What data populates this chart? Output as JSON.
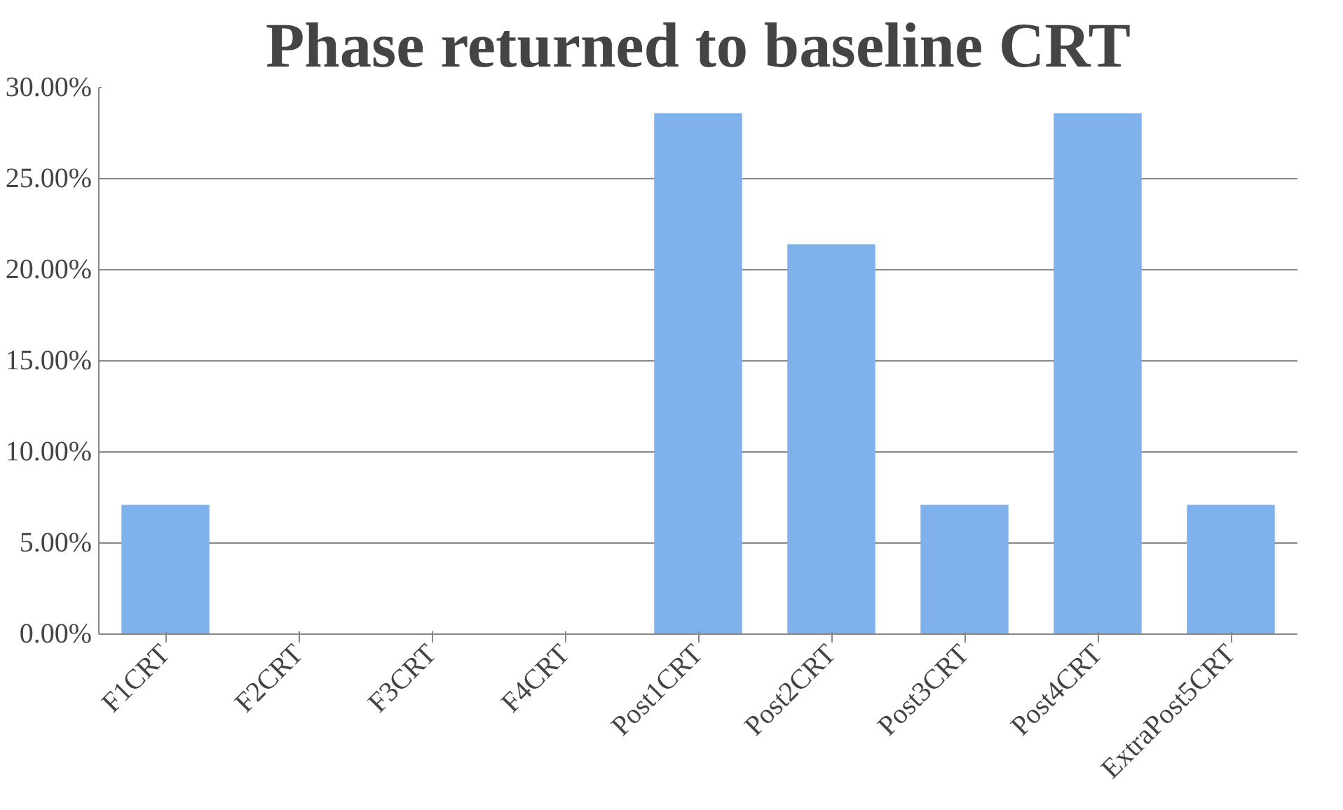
{
  "chart_data": {
    "type": "bar",
    "title": "Phase returned to baseline CRT",
    "categories": [
      "F1CRT",
      "F2CRT",
      "F3CRT",
      "F4CRT",
      "Post1CRT",
      "Post2CRT",
      "Post3CRT",
      "Post4CRT",
      "ExtraPost5CRT"
    ],
    "values": [
      7.1,
      0,
      0,
      0,
      28.6,
      21.4,
      7.1,
      28.6,
      7.1
    ],
    "color": "#7fb1ec",
    "ylim": [
      0,
      30
    ],
    "yticks": [
      {
        "value": 0,
        "label": "0.00%"
      },
      {
        "value": 5,
        "label": "5.00%"
      },
      {
        "value": 10,
        "label": "10.00%"
      },
      {
        "value": 15,
        "label": "15.00%"
      },
      {
        "value": 20,
        "label": "20.00%"
      },
      {
        "value": 25,
        "label": "25.00%"
      },
      {
        "value": 30,
        "label": "30.00%"
      }
    ],
    "grid": "y"
  }
}
